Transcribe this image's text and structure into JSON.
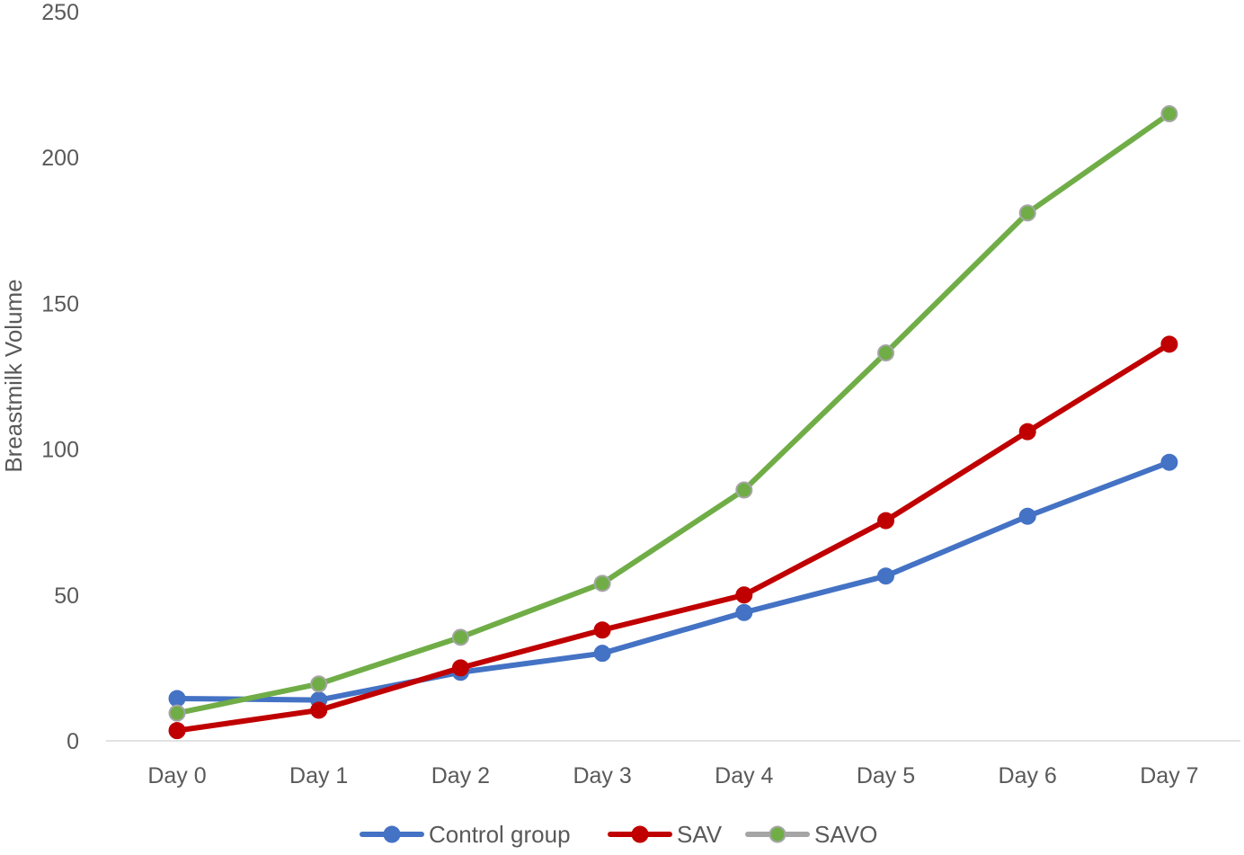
{
  "chart_data": {
    "type": "line",
    "title": "",
    "xlabel": "",
    "ylabel": "Breastmilk Volume",
    "categories": [
      "Day 0",
      "Day 1",
      "Day 2",
      "Day 3",
      "Day 4",
      "Day 5",
      "Day 6",
      "Day 7"
    ],
    "ylim": [
      0,
      250
    ],
    "yticks": [
      0,
      50,
      100,
      150,
      200,
      250
    ],
    "grid": false,
    "legend_position": "bottom",
    "series": [
      {
        "name": "Control group",
        "color": "#4472C4",
        "marker_color": "#4472C4",
        "marker_edge": "#4472C4",
        "values": [
          14.5,
          14,
          23.5,
          30,
          44,
          56.5,
          77,
          95.5
        ]
      },
      {
        "name": "SAV",
        "color": "#C00000",
        "marker_color": "#C00000",
        "marker_edge": "#C00000",
        "values": [
          3.5,
          10.5,
          25,
          38,
          50,
          75.5,
          106,
          136
        ]
      },
      {
        "name": "SAVO",
        "color": "#70AD47",
        "marker_color": "#70AD47",
        "marker_edge": "#A5A5A5",
        "values": [
          9.5,
          19.5,
          35.5,
          54,
          86,
          133,
          181,
          215
        ]
      }
    ]
  }
}
